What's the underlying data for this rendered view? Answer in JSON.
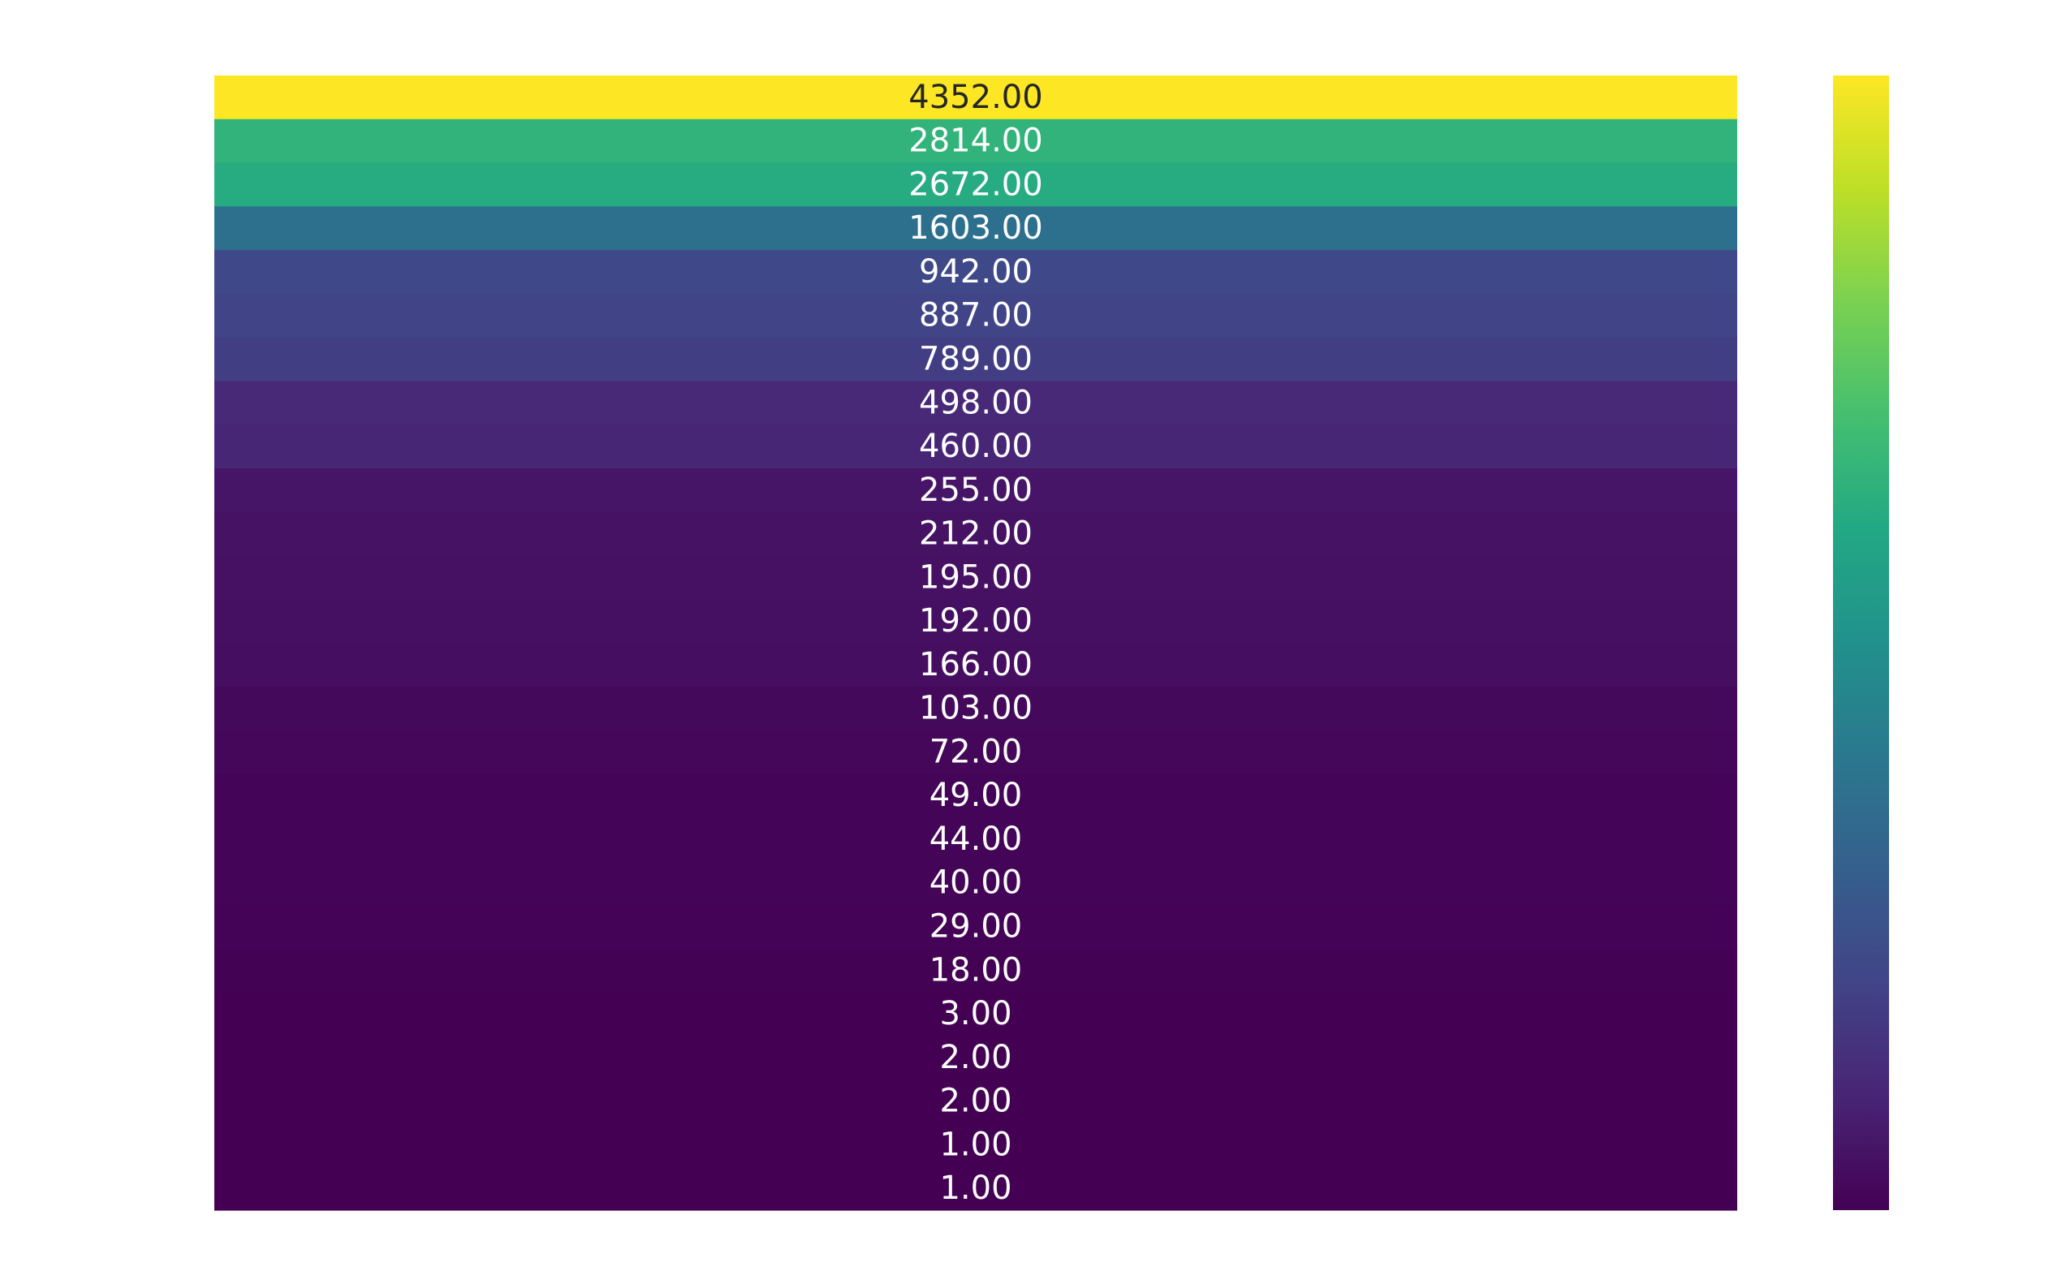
{
  "chart_data": {
    "type": "heatmap",
    "title": "",
    "xlabel": "",
    "ylabel": "",
    "colormap": "viridis",
    "value_format": "0.00",
    "color_range": [
      1,
      4352
    ],
    "values": [
      4352,
      2814,
      2672,
      1603,
      942,
      887,
      789,
      498,
      460,
      255,
      212,
      195,
      192,
      166,
      103,
      72,
      49,
      44,
      40,
      29,
      18,
      3,
      2,
      2,
      1,
      1
    ],
    "colorbar": {
      "shown": true,
      "placement": "right",
      "tick_labels_shown": false
    },
    "grid": false
  }
}
